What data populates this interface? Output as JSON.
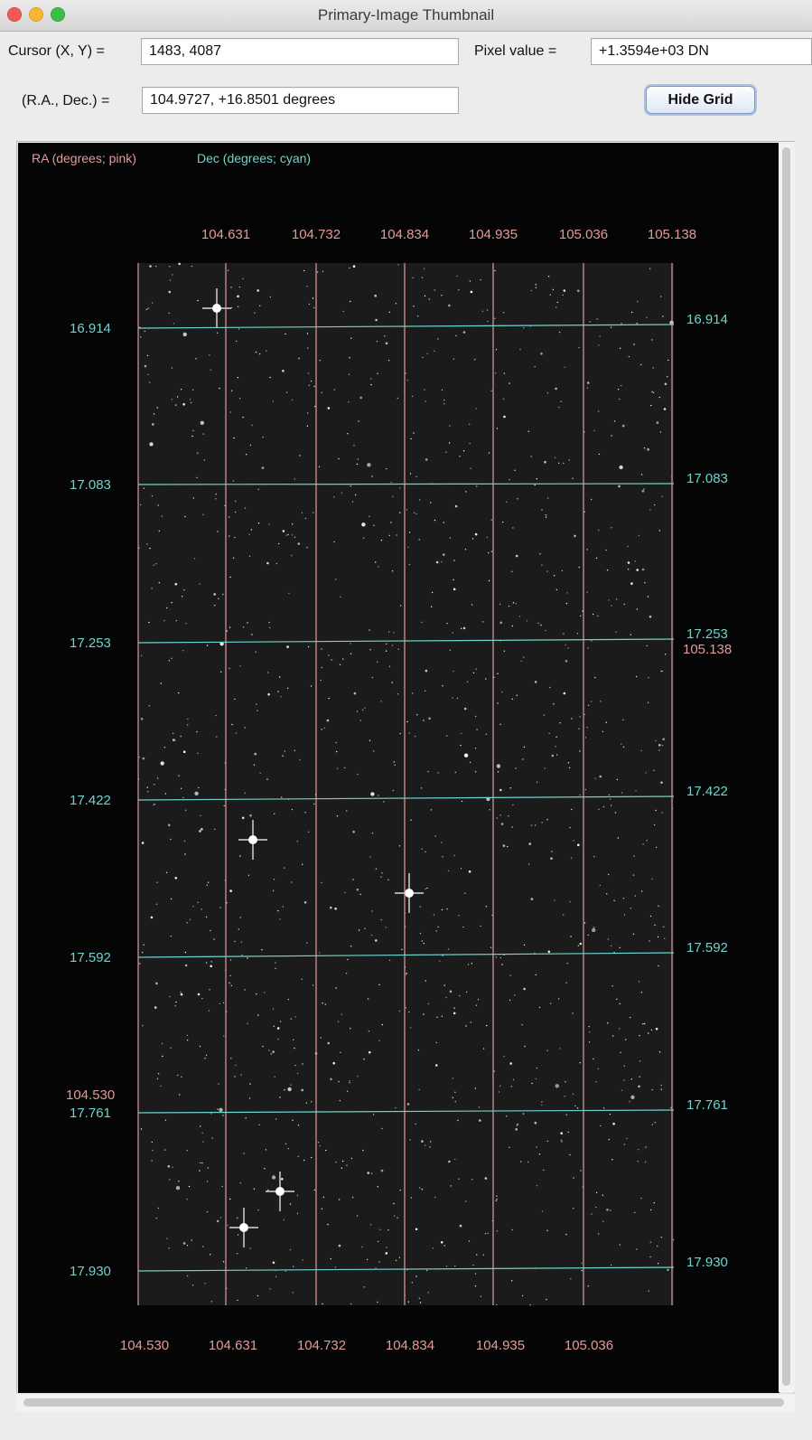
{
  "window": {
    "title": "Primary-Image Thumbnail"
  },
  "controls": {
    "cursor_label": "Cursor (X, Y) =",
    "cursor_value": "1483, 4087",
    "pixel_label": "Pixel value =",
    "pixel_value": "+1.3594e+03 DN",
    "radec_label": "(R.A., Dec.) =",
    "radec_value": "104.9727, +16.8501 degrees",
    "hide_grid_label": "Hide Grid"
  },
  "legend": {
    "ra": "RA (degrees; pink)",
    "dec": "Dec (degrees; cyan)"
  },
  "colors": {
    "ra_grid": "#e39a9a",
    "dec_grid": "#6fd4cc",
    "plot_background": "#050505"
  },
  "grid": {
    "ra_top": [
      "104.631",
      "104.732",
      "104.834",
      "104.935",
      "105.036",
      "105.138"
    ],
    "ra_bottom": [
      "104.530",
      "104.631",
      "104.732",
      "104.834",
      "104.935",
      "105.036"
    ],
    "ra_right_extra": "105.138",
    "ra_left_extra": "104.530",
    "dec_left": [
      "16.914",
      "17.083",
      "17.253",
      "17.422",
      "17.592",
      "17.761",
      "17.930"
    ],
    "dec_right": [
      "16.914",
      "17.083",
      "17.253",
      "17.422",
      "17.592",
      "17.761",
      "17.930"
    ]
  }
}
